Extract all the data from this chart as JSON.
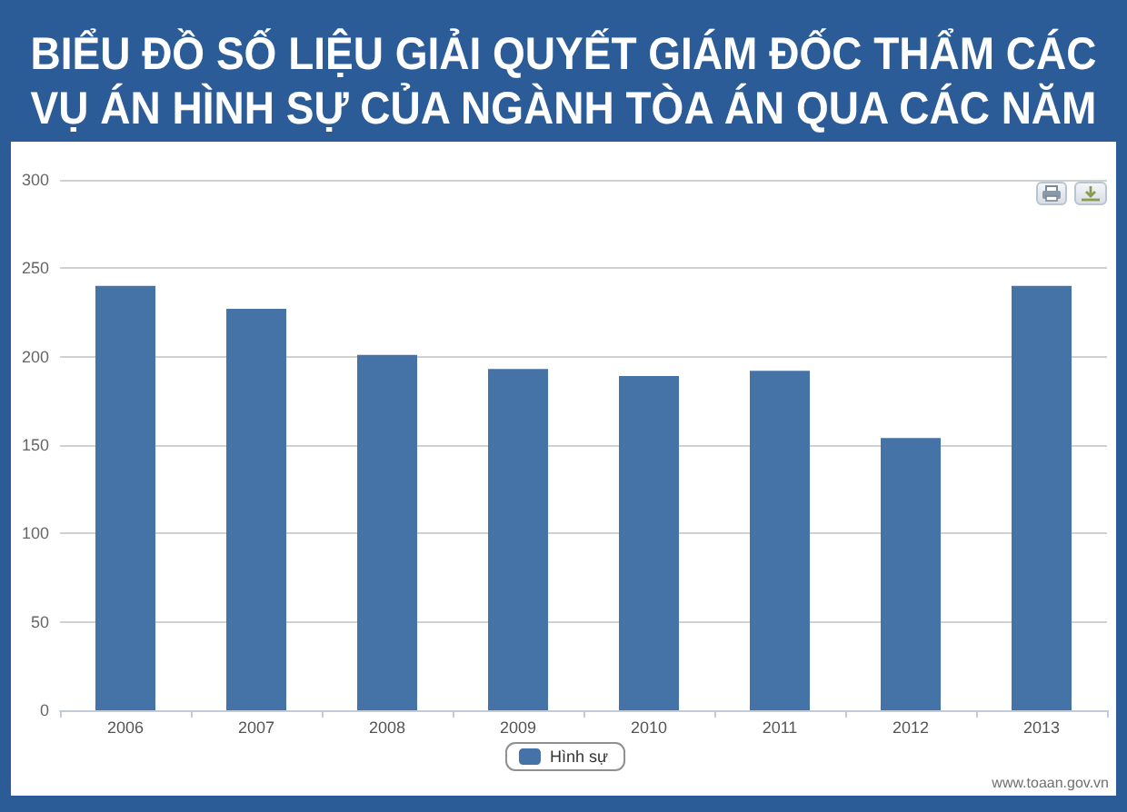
{
  "chart_data": {
    "type": "bar",
    "title": "BIỂU ĐỒ SỐ LIỆU GIẢI QUYẾT GIÁM ĐỐC THẨM CÁC VỤ ÁN HÌNH SỰ CỦA NGÀNH TÒA ÁN QUA CÁC NĂM",
    "categories": [
      "2006",
      "2007",
      "2008",
      "2009",
      "2010",
      "2011",
      "2012",
      "2013"
    ],
    "series": [
      {
        "name": "Hình sự",
        "color": "#4572a7",
        "values": [
          240,
          227,
          201,
          193,
          189,
          192,
          154,
          240
        ]
      }
    ],
    "ylim": [
      0,
      300
    ],
    "yticks": [
      0,
      50,
      100,
      150,
      200,
      250,
      300
    ],
    "grid": "y",
    "legend": "bottom",
    "annotations": [
      "www.toaan.gov.vn"
    ]
  }
}
